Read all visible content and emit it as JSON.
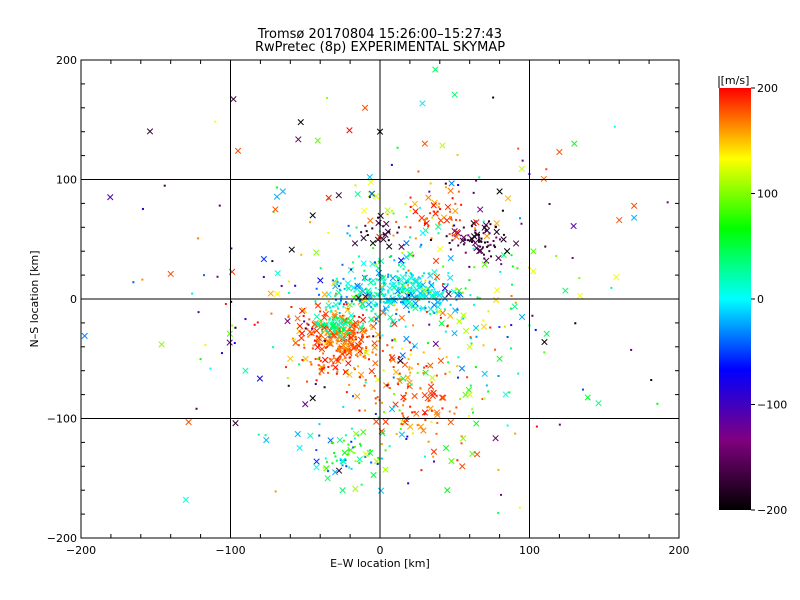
{
  "chart_data": {
    "type": "scatter",
    "title": "Tromsø 20170804 15:26:00–15:27:43",
    "subtitle": "RwPretec (8p) EXPERIMENTAL SKYMAP",
    "xlabel": "E–W location [km]",
    "ylabel": "N–S location [km]",
    "xlim": [
      -200,
      200
    ],
    "ylim": [
      -200,
      200
    ],
    "x_ticks": [
      -200,
      -100,
      0,
      100,
      200
    ],
    "y_ticks": [
      -200,
      -100,
      0,
      100,
      200
    ],
    "x_tick_labels": [
      "−200",
      "−100",
      "0",
      "100",
      "200"
    ],
    "y_tick_labels": [
      "−200",
      "−100",
      "0",
      "100",
      "200"
    ],
    "grid_lines": [
      -100,
      0,
      100
    ],
    "grid": true,
    "colorbar": {
      "label": "[m/s]",
      "range": [
        -200,
        200
      ],
      "ticks": [
        -200,
        -100,
        0,
        100,
        200
      ],
      "tick_labels": [
        "−200",
        "−100",
        "0",
        "100",
        "200"
      ],
      "colors": [
        "#000000",
        "#800080",
        "#0000ff",
        "#00ffff",
        "#00ff00",
        "#ffff00",
        "#ff0000"
      ],
      "placement": "right"
    },
    "point_groups": [
      {
        "name": "",
        "cx": -27,
        "cy": -35,
        "sx": 14,
        "sy": 13,
        "vmin": 150,
        "vmax": 200,
        "n": 320
      },
      {
        "name": "",
        "cx": -28,
        "cy": -22,
        "sx": 6,
        "sy": 5,
        "vmin": 10,
        "vmax": 60,
        "n": 70
      },
      {
        "name": "",
        "cx": 8,
        "cy": 5,
        "sx": 22,
        "sy": 10,
        "vmin": -40,
        "vmax": 40,
        "n": 320
      },
      {
        "name": "",
        "cx": 22,
        "cy": -80,
        "sx": 16,
        "sy": 22,
        "vmin": 150,
        "vmax": 200,
        "n": 110
      },
      {
        "name": "",
        "cx": 65,
        "cy": 48,
        "sx": 9,
        "sy": 8,
        "vmin": -200,
        "vmax": -140,
        "n": 70
      },
      {
        "name": "",
        "cx": 40,
        "cy": 72,
        "sx": 14,
        "sy": 10,
        "vmin": 150,
        "vmax": 200,
        "n": 55
      },
      {
        "name": "",
        "cx": 0,
        "cy": 57,
        "sx": 7,
        "sy": 6,
        "vmin": -200,
        "vmax": -160,
        "n": 25
      },
      {
        "name": "",
        "cx": -20,
        "cy": -130,
        "sx": 12,
        "sy": 12,
        "vmin": -60,
        "vmax": 120,
        "n": 60
      },
      {
        "name": "",
        "cx": 35,
        "cy": -20,
        "sx": 30,
        "sy": 50,
        "vmin": -40,
        "vmax": 200,
        "n": 160
      },
      {
        "name": "",
        "cx": 0,
        "cy": 0,
        "sx": 75,
        "sy": 85,
        "vmin": -200,
        "vmax": 200,
        "n": 260
      }
    ],
    "points": [
      [
        37,
        192,
        40
      ],
      [
        50,
        171,
        40
      ],
      [
        -53,
        148,
        -200
      ],
      [
        -95,
        124,
        180
      ],
      [
        -140,
        21,
        180
      ],
      [
        -128,
        -103,
        180
      ],
      [
        120,
        123,
        180
      ],
      [
        130,
        130,
        60
      ],
      [
        170,
        68,
        -20
      ],
      [
        160,
        66,
        180
      ],
      [
        124,
        7,
        40
      ],
      [
        170,
        78,
        180
      ],
      [
        110,
        -36,
        -200
      ],
      [
        -45,
        -83,
        -200
      ],
      [
        -50,
        -88,
        -120
      ],
      [
        -55,
        -113,
        -20
      ],
      [
        -90,
        -60,
        20
      ],
      [
        -60,
        -50,
        150
      ],
      [
        80,
        90,
        -200
      ],
      [
        85,
        40,
        -200
      ],
      [
        60,
        -40,
        120
      ],
      [
        95,
        -15,
        -20
      ],
      [
        -70,
        75,
        180
      ],
      [
        -65,
        90,
        -20
      ],
      [
        -45,
        70,
        -200
      ],
      [
        30,
        130,
        180
      ],
      [
        -10,
        160,
        180
      ],
      [
        0,
        140,
        -200
      ],
      [
        55,
        -140,
        180
      ],
      [
        65,
        -130,
        180
      ],
      [
        45,
        -160,
        60
      ],
      [
        -30,
        -145,
        -20
      ],
      [
        -35,
        -150,
        40
      ],
      [
        -25,
        -160,
        40
      ],
      [
        60,
        -80,
        120
      ],
      [
        80,
        -50,
        60
      ]
    ]
  }
}
